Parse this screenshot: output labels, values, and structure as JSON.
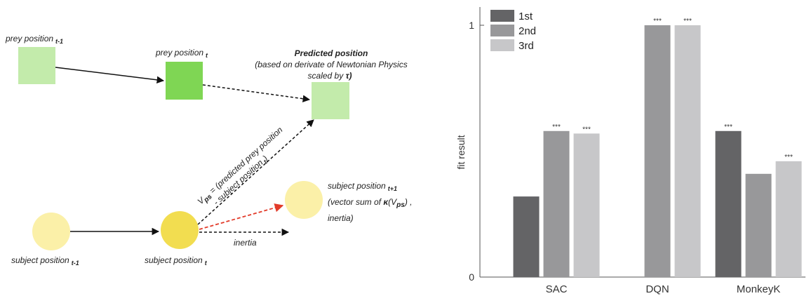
{
  "diagram": {
    "prey_prev": "prey position",
    "prey_prev_sub": "t-1",
    "prey_curr": "prey position",
    "prey_curr_sub": "t",
    "predicted_title": "Predicted position",
    "predicted_line1": "(based on derivate of Newtonian Physics",
    "predicted_line2": "scaled by ",
    "predicted_tau": "τ)",
    "vps_line1": "V",
    "vps_sub": "ps",
    "vps_rest": " = (predicted prey position",
    "vps_line2": "- subject position",
    "vps_line2_sub": "t",
    "vps_line2_end": ")",
    "subj_prev": "subject position",
    "subj_prev_sub": "t-1",
    "subj_curr": "subject position",
    "subj_curr_sub": "t",
    "subj_next": "subject position",
    "subj_next_sub": "t+1",
    "subj_next_line2a": "(vector sum of ",
    "subj_next_kappa": "κ",
    "subj_next_line2b": "(V",
    "subj_next_line2sub": "ps",
    "subj_next_line2c": ") ,",
    "subj_next_line3": "inertia)",
    "inertia": "inertia",
    "colors": {
      "prey_light": "#c3ebab",
      "prey_dark": "#7fd654",
      "subject_light": "#fbf0a8",
      "subject_dark": "#f2dd50",
      "arrow_red": "#e23b2a"
    }
  },
  "chart_data": {
    "type": "bar",
    "ylabel": "fit result",
    "ylim": [
      0,
      1
    ],
    "yticks": [
      "0",
      "1"
    ],
    "categories": [
      "SAC",
      "DQN",
      "MonkeyK"
    ],
    "series": [
      {
        "name": "1st",
        "color": "#646466",
        "values": [
          0.32,
          null,
          0.58
        ]
      },
      {
        "name": "2nd",
        "color": "#98989a",
        "values": [
          0.58,
          1.0,
          0.41
        ]
      },
      {
        "name": "3rd",
        "color": "#c7c7c9",
        "values": [
          0.57,
          1.0,
          0.46
        ]
      }
    ],
    "significance": [
      [
        "",
        "***",
        "***"
      ],
      [
        "",
        "***",
        "***"
      ],
      [
        "***",
        "",
        "***"
      ]
    ],
    "legend_position": "top-left"
  }
}
